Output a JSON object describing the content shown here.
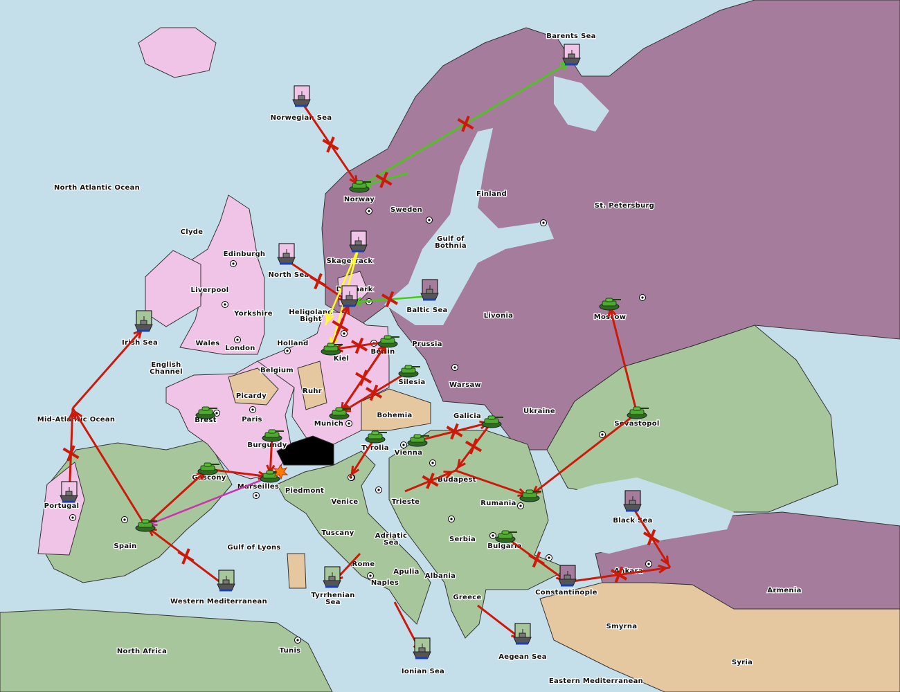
{
  "colors": {
    "sea": "#c5dfea",
    "england_france_germany": "#f0c4e6",
    "russia_turkey": "#a67c9c",
    "austria_italy": "#a8c69c",
    "neutral": "#e6c8a0",
    "impassable": "#000000",
    "order_move": "#cc1a0a",
    "order_support": "#44cc11",
    "order_convoy": "#ffff22",
    "order_retreat": "#cc33aa"
  },
  "provinces": [
    "North Atlantic Ocean",
    "Norwegian Sea",
    "Barents Sea",
    "Norway",
    "Sweden",
    "Finland",
    "St. Petersburg",
    "Gulf of Bothnia",
    "Clyde",
    "Edinburgh",
    "Liverpool",
    "Yorkshire",
    "North Sea",
    "Skagerrack",
    "Denmark",
    "Baltic Sea",
    "Livonia",
    "Moscow",
    "Heligoland Bight",
    "Irish Sea",
    "Wales",
    "London",
    "Holland",
    "Kiel",
    "Berlin",
    "Prussia",
    "English Channel",
    "Belgium",
    "Silesia",
    "Warsaw",
    "Picardy",
    "Ruhr",
    "Ukraine",
    "Mid-Atlantic Ocean",
    "Brest",
    "Paris",
    "Bohemia",
    "Galicia",
    "Munich",
    "Sevastopol",
    "Burgundy",
    "Tyrolia",
    "Vienna",
    "Gascony",
    "Budapest",
    "Marseilles",
    "Piedmont",
    "Venice",
    "Trieste",
    "Rumania",
    "Portugal",
    "Black Sea",
    "Spain",
    "Gulf of Lyons",
    "Tuscany",
    "Adriatic Sea",
    "Serbia",
    "Bulgaria",
    "Rome",
    "Apulia",
    "Albania",
    "Ankara",
    "Naples",
    "Armenia",
    "Constantinople",
    "Greece",
    "Tyrrhenian Sea",
    "Western Mediterranean",
    "Smyrna",
    "North Africa",
    "Tunis",
    "Aegean Sea",
    "Syria",
    "Ionian Sea",
    "Eastern Mediterranean"
  ],
  "units": [
    {
      "type": "fleet",
      "province": "Barents Sea",
      "owner": "england_france_germany"
    },
    {
      "type": "fleet",
      "province": "Norwegian Sea",
      "owner": "england_france_germany"
    },
    {
      "type": "fleet",
      "province": "North Sea",
      "owner": "england_france_germany"
    },
    {
      "type": "fleet",
      "province": "Skagerrack",
      "owner": "england_france_germany"
    },
    {
      "type": "fleet",
      "province": "Denmark",
      "owner": "england_france_germany"
    },
    {
      "type": "fleet",
      "province": "Baltic Sea",
      "owner": "russia_turkey"
    },
    {
      "type": "fleet",
      "province": "Irish Sea",
      "owner": "austria_italy"
    },
    {
      "type": "fleet",
      "province": "Portugal",
      "owner": "england_france_germany"
    },
    {
      "type": "fleet",
      "province": "Black Sea",
      "owner": "russia_turkey"
    },
    {
      "type": "fleet",
      "province": "Western Mediterranean",
      "owner": "austria_italy"
    },
    {
      "type": "fleet",
      "province": "Tyrrhenian Sea",
      "owner": "austria_italy"
    },
    {
      "type": "fleet",
      "province": "Ionian Sea",
      "owner": "austria_italy"
    },
    {
      "type": "fleet",
      "province": "Aegean Sea",
      "owner": "austria_italy"
    },
    {
      "type": "fleet",
      "province": "Constantinople",
      "owner": "russia_turkey"
    },
    {
      "type": "army",
      "province": "Norway",
      "owner": "england_france_germany"
    },
    {
      "type": "army",
      "province": "Kiel",
      "owner": "england_france_germany"
    },
    {
      "type": "army",
      "province": "Berlin",
      "owner": "russia_turkey"
    },
    {
      "type": "army",
      "province": "Silesia",
      "owner": "england_france_germany"
    },
    {
      "type": "army",
      "province": "Munich",
      "owner": "england_france_germany"
    },
    {
      "type": "army",
      "province": "Brest",
      "owner": "england_france_germany"
    },
    {
      "type": "army",
      "province": "Burgundy",
      "owner": "england_france_germany"
    },
    {
      "type": "army",
      "province": "Marseilles",
      "owner": "england_france_germany"
    },
    {
      "type": "army",
      "province": "Gascony",
      "owner": "austria_italy"
    },
    {
      "type": "army",
      "province": "Spain",
      "owner": "austria_italy"
    },
    {
      "type": "army",
      "province": "Tyrolia",
      "owner": "austria_italy"
    },
    {
      "type": "army",
      "province": "Vienna",
      "owner": "austria_italy"
    },
    {
      "type": "army",
      "province": "Galicia",
      "owner": "russia_turkey"
    },
    {
      "type": "army",
      "province": "Rumania",
      "owner": "austria_italy"
    },
    {
      "type": "army",
      "province": "Bulgaria",
      "owner": "austria_italy"
    },
    {
      "type": "army",
      "province": "Moscow",
      "owner": "austria_italy"
    },
    {
      "type": "army",
      "province": "Sevastopol",
      "owner": "austria_italy"
    }
  ],
  "orders": [
    {
      "from": "Norwegian Sea",
      "to": "Norway",
      "kind": "order_move",
      "failed": true
    },
    {
      "from": "Norway",
      "to": "Barents Sea",
      "kind": "order_support",
      "failed": true
    },
    {
      "from": "Sweden",
      "to": "Norway",
      "kind": "order_support",
      "failed": true
    },
    {
      "from": "North Sea",
      "to": "Denmark",
      "kind": "order_move",
      "failed": true
    },
    {
      "from": "Skagerrack",
      "to": "Heligoland Bight",
      "kind": "order_convoy",
      "failed": false
    },
    {
      "from": "Skagerrack",
      "to": "Kiel",
      "kind": "order_convoy",
      "failed": false
    },
    {
      "from": "Baltic Sea",
      "to": "Denmark",
      "kind": "order_support",
      "failed": true
    },
    {
      "from": "Kiel",
      "to": "Denmark",
      "kind": "order_move",
      "failed": true
    },
    {
      "from": "Berlin",
      "to": "Kiel",
      "kind": "order_move",
      "failed": true
    },
    {
      "from": "Berlin",
      "to": "Munich",
      "kind": "order_move",
      "failed": true
    },
    {
      "from": "Silesia",
      "to": "Munich",
      "kind": "order_move",
      "failed": true
    },
    {
      "from": "Munich",
      "to": "Berlin",
      "kind": "order_move",
      "failed": false
    },
    {
      "from": "Mid-Atlantic Ocean",
      "to": "Irish Sea",
      "kind": "order_move",
      "failed": false
    },
    {
      "from": "Portugal",
      "to": "Mid-Atlantic Ocean",
      "kind": "order_move",
      "failed": true
    },
    {
      "from": "Spain",
      "to": "Mid-Atlantic Ocean",
      "kind": "order_move",
      "failed": false
    },
    {
      "from": "Western Mediterranean",
      "to": "Spain",
      "kind": "order_move",
      "failed": true
    },
    {
      "from": "Marseilles",
      "to": "Spain",
      "kind": "order_retreat",
      "failed": false
    },
    {
      "from": "Gascony",
      "to": "Marseilles",
      "kind": "order_move",
      "failed": false
    },
    {
      "from": "Spain",
      "to": "Gascony",
      "kind": "order_move",
      "failed": false
    },
    {
      "from": "Burgundy",
      "to": "Marseilles",
      "kind": "order_move",
      "failed": false
    },
    {
      "from": "Tyrolia",
      "to": "Venice",
      "kind": "order_move",
      "failed": false
    },
    {
      "from": "Vienna",
      "to": "Galicia",
      "kind": "order_move",
      "failed": true
    },
    {
      "from": "Galicia",
      "to": "Budapest",
      "kind": "order_move",
      "failed": true
    },
    {
      "from": "Trieste",
      "to": "Budapest",
      "kind": "order_move",
      "failed": true
    },
    {
      "from": "Budapest",
      "to": "Rumania",
      "kind": "order_move",
      "failed": false
    },
    {
      "from": "Sevastopol",
      "to": "Rumania",
      "kind": "order_move",
      "failed": false
    },
    {
      "from": "Sevastopol",
      "to": "Moscow",
      "kind": "order_move",
      "failed": false
    },
    {
      "from": "Bulgaria",
      "to": "Constantinople",
      "kind": "order_move",
      "failed": true
    },
    {
      "from": "Constantinople",
      "to": "Ankara",
      "kind": "order_move",
      "failed": true
    },
    {
      "from": "Black Sea",
      "to": "Ankara",
      "kind": "order_move",
      "failed": true
    },
    {
      "from": "Greece",
      "to": "Aegean Sea",
      "kind": "order_move",
      "failed": false
    },
    {
      "from": "Rome",
      "to": "Tyrrhenian Sea",
      "kind": "order_move",
      "failed": false
    },
    {
      "from": "Naples",
      "to": "Ionian Sea",
      "kind": "order_move",
      "failed": false
    }
  ]
}
